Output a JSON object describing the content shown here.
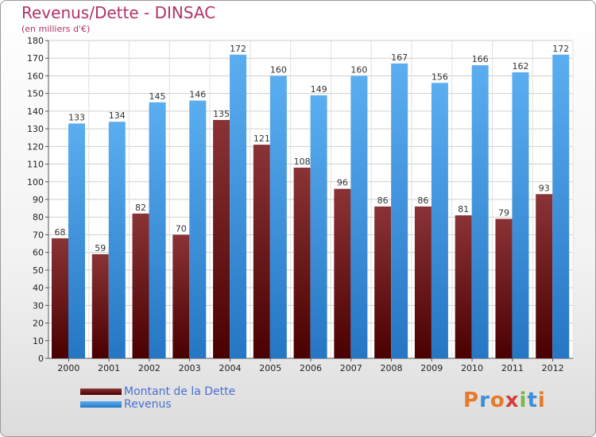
{
  "header": {
    "title": "Revenus/Dette - DINSAC",
    "subtitle": "(en milliers d'€)"
  },
  "logo": {
    "text": "Proxiti",
    "colors": [
      "#e8792b",
      "#3c8fd6",
      "#e8792b",
      "#d63c3c",
      "#7ab648",
      "#3c8fd6",
      "#e8792b"
    ]
  },
  "chart_data": {
    "type": "bar",
    "title": "Revenus/Dette - DINSAC",
    "subtitle": "(en milliers d'€)",
    "xlabel": "",
    "ylabel": "",
    "ylim": [
      0,
      180
    ],
    "yticks": [
      0,
      10,
      20,
      30,
      40,
      50,
      60,
      70,
      80,
      90,
      100,
      110,
      120,
      130,
      140,
      150,
      160,
      170,
      180
    ],
    "grid": true,
    "legend_position": "bottom-left",
    "categories": [
      "2000",
      "2001",
      "2002",
      "2003",
      "2004",
      "2005",
      "2006",
      "2007",
      "2008",
      "2009",
      "2010",
      "2011",
      "2012"
    ],
    "series": [
      {
        "name": "Montant de la Dette",
        "color": "#7a1a1a",
        "values": [
          68,
          59,
          82,
          70,
          135,
          121,
          108,
          96,
          86,
          86,
          81,
          79,
          93
        ]
      },
      {
        "name": "Revenus",
        "color": "#3d9be3",
        "values": [
          133,
          134,
          145,
          146,
          172,
          160,
          149,
          160,
          167,
          156,
          166,
          162,
          172
        ]
      }
    ]
  }
}
